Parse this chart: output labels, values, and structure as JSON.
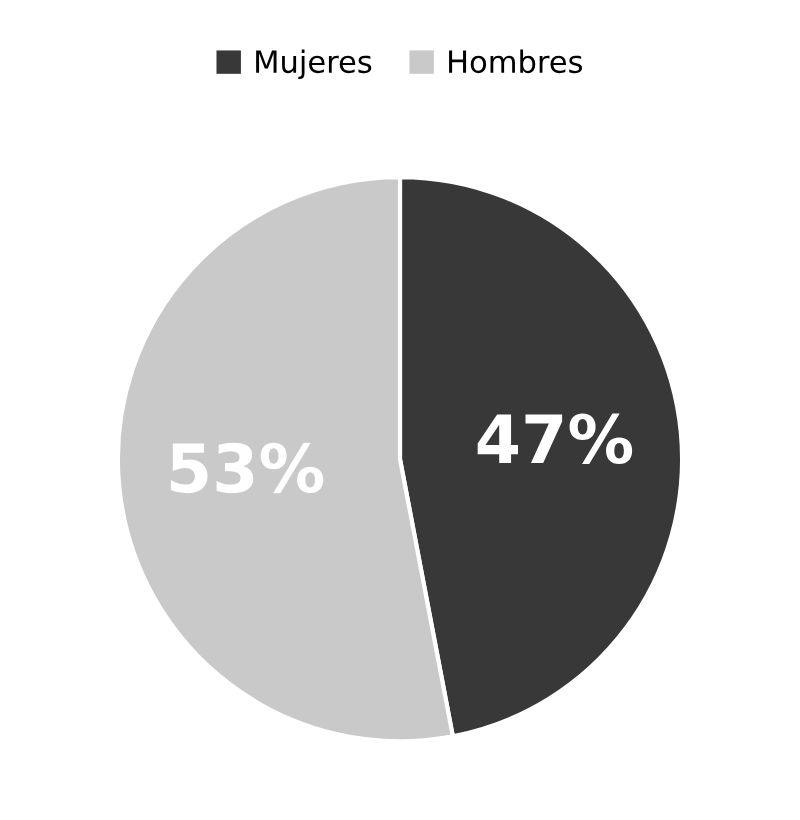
{
  "chart_data": {
    "type": "pie",
    "categories": [
      "Mujeres",
      "Hombres"
    ],
    "values": [
      47,
      53
    ],
    "colors": [
      "#383838",
      "#c9c9c9"
    ],
    "value_labels": [
      "47%",
      "53%"
    ],
    "legend": "top"
  }
}
